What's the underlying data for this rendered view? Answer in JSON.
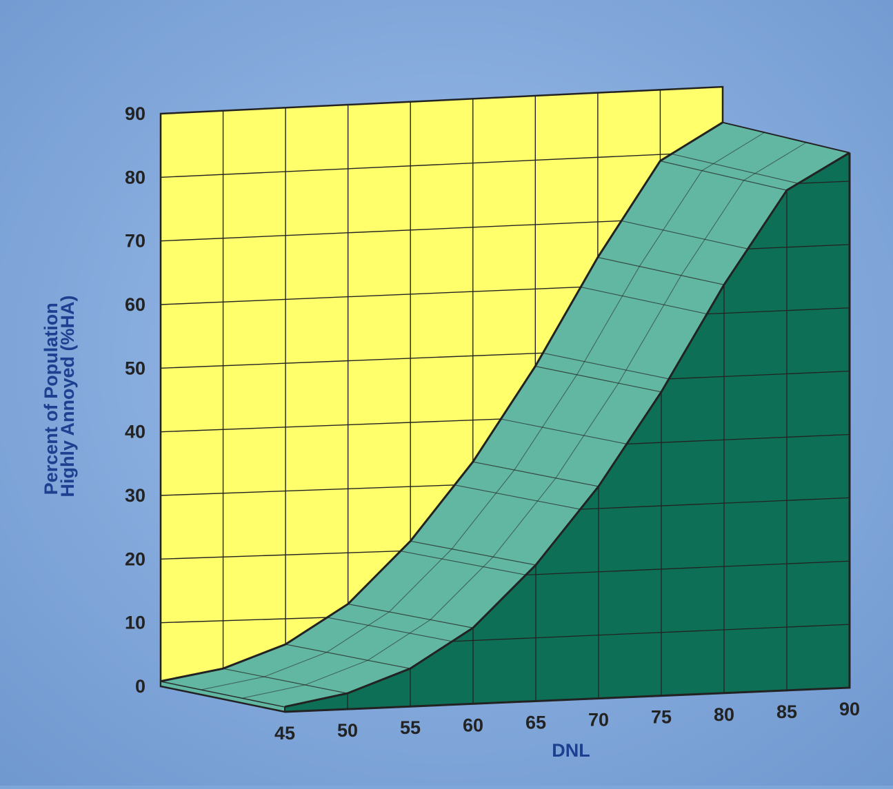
{
  "chart_data": {
    "type": "area",
    "xlabel": "DNL",
    "ylabel_line1": "Percent of Population",
    "ylabel_line2": "Highly Annoyed (%HA)",
    "x": [
      45,
      50,
      55,
      60,
      65,
      70,
      75,
      80,
      85,
      90
    ],
    "y_ticks": [
      0,
      10,
      20,
      30,
      40,
      50,
      60,
      70,
      80,
      90
    ],
    "ylim": [
      0,
      90
    ],
    "series": [
      {
        "values": [
          0.8,
          2.5,
          6.0,
          12.0,
          21.5,
          33.5,
          48.0,
          64.5,
          79.0,
          84.5
        ]
      }
    ],
    "style": "3d",
    "colors": {
      "background": "#7fa6d8",
      "back_wall": "#ffff6b",
      "area_top": "#62b7a2",
      "area_front": "#0e6f57",
      "grid": "#222222",
      "axis_title": "#1d3f8f"
    }
  }
}
